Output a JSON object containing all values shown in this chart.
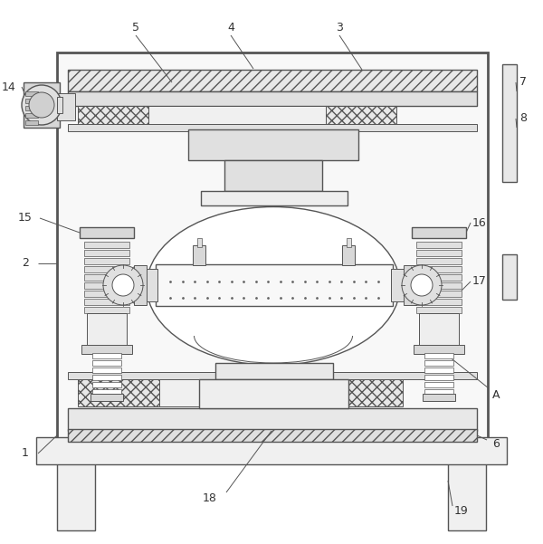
{
  "line_color": "#555555",
  "label_color": "#333333",
  "bg_color": "#ffffff"
}
